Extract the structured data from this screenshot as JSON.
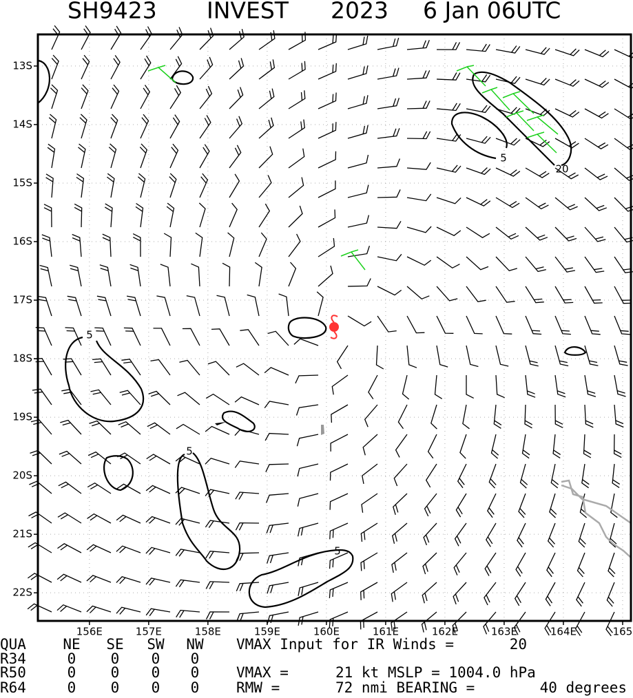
{
  "header": {
    "title": [
      "SH9423",
      "INVEST",
      "2023",
      "6 Jan 06UTC"
    ]
  },
  "map": {
    "xlim": [
      155.13,
      165.14
    ],
    "ylim": [
      -12.46,
      -22.48
    ],
    "xticks": [
      {
        "value": 156,
        "label": "156E"
      },
      {
        "value": 157,
        "label": "157E"
      },
      {
        "value": 158,
        "label": "158E"
      },
      {
        "value": 159,
        "label": "159E"
      },
      {
        "value": 160,
        "label": "160E"
      },
      {
        "value": 161,
        "label": "161E"
      },
      {
        "value": 162,
        "label": "162E"
      },
      {
        "value": 163,
        "label": "163E"
      },
      {
        "value": 164,
        "label": "164E"
      },
      {
        "value": 165,
        "label": "165"
      }
    ],
    "yticks": [
      {
        "value": -13,
        "label": "13S"
      },
      {
        "value": -14,
        "label": "14S"
      },
      {
        "value": -15,
        "label": "15S"
      },
      {
        "value": -16,
        "label": "16S"
      },
      {
        "value": -17,
        "label": "17S"
      },
      {
        "value": -18,
        "label": "18S"
      },
      {
        "value": -19,
        "label": "19S"
      },
      {
        "value": -20,
        "label": "20S"
      },
      {
        "value": -21,
        "label": "21S"
      },
      {
        "value": -22,
        "label": "22S"
      }
    ],
    "contour_labels": [
      "5",
      "5",
      "5",
      "5",
      "20"
    ]
  },
  "footer": {
    "rows": [
      [
        "QUA",
        "NE",
        "SE",
        "SW",
        "NW",
        "VMAX Input for IR Winds =",
        "20"
      ],
      [
        "R34",
        "0",
        "0",
        "0",
        "0"
      ],
      [
        "R50",
        "0",
        "0",
        "0",
        "0",
        "VMAX =",
        "21 kt MSLP = 1004.0 hPa"
      ],
      [
        "R64",
        "0",
        "0",
        "0",
        "0",
        "RMW =",
        "72 nmi BEARING =",
        "40 degrees"
      ]
    ]
  }
}
